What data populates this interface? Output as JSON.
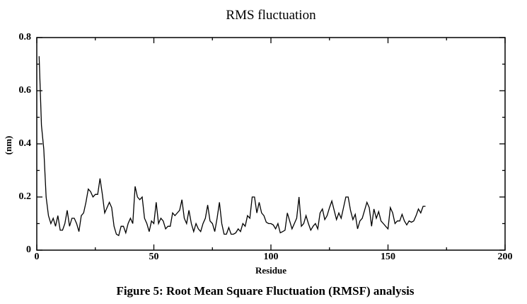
{
  "chart_data": {
    "type": "line",
    "title": "RMS fluctuation",
    "xlabel": "Residue",
    "ylabel": "(nm)",
    "xlim": [
      0,
      200
    ],
    "ylim": [
      0,
      0.8
    ],
    "xticks": [
      "0",
      "50",
      "100",
      "150",
      "200"
    ],
    "yticks": [
      "0",
      "0.2",
      "0.4",
      "0.6",
      "0.8"
    ],
    "grid": false,
    "x_start": 1,
    "x_step": 1,
    "series": [
      {
        "name": "RMSF",
        "color": "#000000",
        "values": [
          0.73,
          0.47,
          0.38,
          0.2,
          0.13,
          0.1,
          0.12,
          0.09,
          0.13,
          0.075,
          0.075,
          0.1,
          0.15,
          0.09,
          0.12,
          0.12,
          0.1,
          0.07,
          0.13,
          0.14,
          0.18,
          0.23,
          0.22,
          0.2,
          0.21,
          0.21,
          0.27,
          0.21,
          0.14,
          0.16,
          0.18,
          0.16,
          0.09,
          0.06,
          0.055,
          0.09,
          0.09,
          0.065,
          0.1,
          0.12,
          0.1,
          0.24,
          0.2,
          0.19,
          0.2,
          0.12,
          0.1,
          0.07,
          0.11,
          0.1,
          0.18,
          0.1,
          0.12,
          0.11,
          0.08,
          0.09,
          0.09,
          0.14,
          0.13,
          0.14,
          0.15,
          0.19,
          0.12,
          0.1,
          0.15,
          0.1,
          0.07,
          0.1,
          0.08,
          0.07,
          0.1,
          0.12,
          0.17,
          0.11,
          0.1,
          0.07,
          0.12,
          0.18,
          0.1,
          0.06,
          0.06,
          0.085,
          0.06,
          0.06,
          0.065,
          0.08,
          0.07,
          0.1,
          0.09,
          0.13,
          0.12,
          0.2,
          0.2,
          0.14,
          0.18,
          0.14,
          0.13,
          0.105,
          0.1,
          0.1,
          0.095,
          0.08,
          0.1,
          0.065,
          0.07,
          0.075,
          0.14,
          0.11,
          0.08,
          0.1,
          0.12,
          0.2,
          0.09,
          0.1,
          0.13,
          0.1,
          0.075,
          0.09,
          0.1,
          0.08,
          0.14,
          0.155,
          0.115,
          0.13,
          0.16,
          0.185,
          0.15,
          0.115,
          0.14,
          0.12,
          0.16,
          0.2,
          0.2,
          0.15,
          0.115,
          0.135,
          0.08,
          0.11,
          0.12,
          0.15,
          0.18,
          0.16,
          0.09,
          0.155,
          0.12,
          0.145,
          0.11,
          0.1,
          0.09,
          0.08,
          0.16,
          0.14,
          0.1,
          0.11,
          0.11,
          0.135,
          0.11,
          0.095,
          0.11,
          0.105,
          0.11,
          0.13,
          0.155,
          0.14,
          0.165,
          0.165
        ]
      }
    ]
  },
  "caption": "Figure 5: Root Mean Square Fluctuation (RMSF) analysis"
}
